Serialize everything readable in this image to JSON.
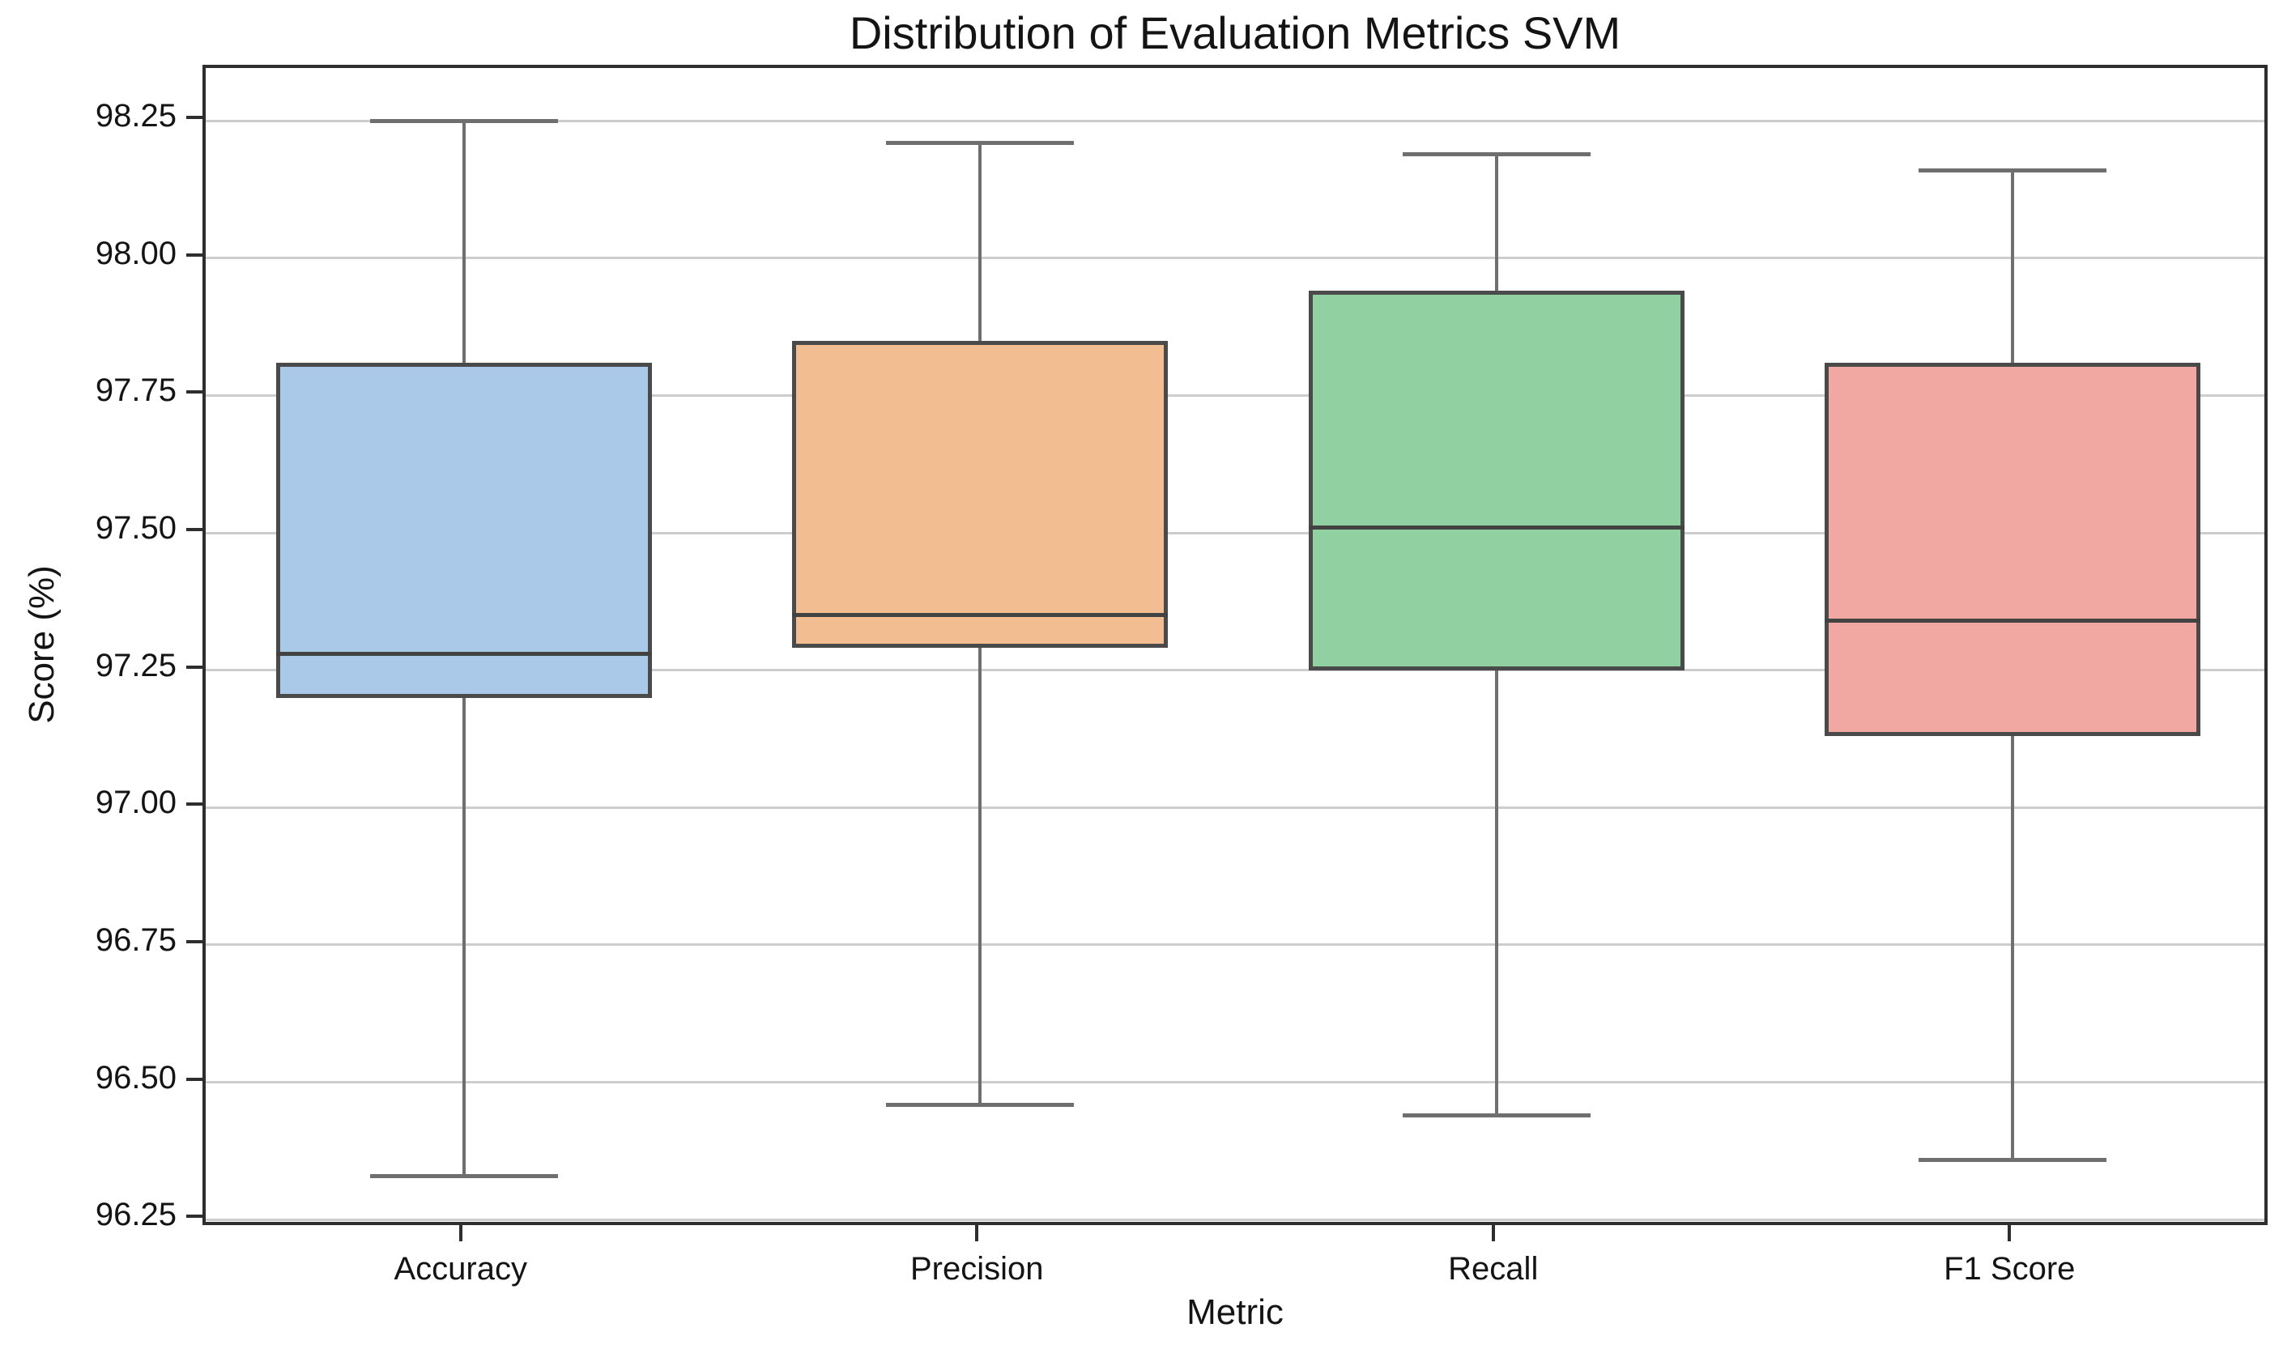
{
  "chart_data": {
    "type": "box",
    "title": "Distribution of Evaluation Metrics SVM",
    "xlabel": "Metric",
    "ylabel": "Score (%)",
    "categories": [
      "Accuracy",
      "Precision",
      "Recall",
      "F1 Score"
    ],
    "ylim": [
      96.234,
      98.346
    ],
    "grid": true,
    "legend": null,
    "yticks": [
      {
        "value": 96.25,
        "label": "96.25"
      },
      {
        "value": 96.5,
        "label": "96.50"
      },
      {
        "value": 96.75,
        "label": "96.75"
      },
      {
        "value": 97.0,
        "label": "97.00"
      },
      {
        "value": 97.25,
        "label": "97.25"
      },
      {
        "value": 97.5,
        "label": "97.50"
      },
      {
        "value": 97.75,
        "label": "97.75"
      },
      {
        "value": 98.0,
        "label": "98.00"
      },
      {
        "value": 98.25,
        "label": "98.25"
      }
    ],
    "series": [
      {
        "name": "Accuracy",
        "whisker_low": 96.33,
        "q1": 97.2,
        "median": 97.28,
        "q3": 97.81,
        "whisker_high": 98.25,
        "fill_color": "#aac9e8"
      },
      {
        "name": "Precision",
        "whisker_low": 96.46,
        "q1": 97.29,
        "median": 97.35,
        "q3": 97.85,
        "whisker_high": 98.21,
        "fill_color": "#f2bd90"
      },
      {
        "name": "Recall",
        "whisker_low": 96.44,
        "q1": 97.25,
        "median": 97.51,
        "q3": 97.94,
        "whisker_high": 98.19,
        "fill_color": "#90d0a1"
      },
      {
        "name": "F1 Score",
        "whisker_low": 96.36,
        "q1": 97.13,
        "median": 97.34,
        "q3": 97.81,
        "whisker_high": 98.16,
        "fill_color": "#f1a8a3"
      }
    ],
    "colors": {
      "grid": "#cdcdcd",
      "spine": "#2e2e2e",
      "whisker": "#6f6f6f",
      "box_edge": "#4a4a4a",
      "median": "#424242",
      "text": "#141414"
    }
  }
}
